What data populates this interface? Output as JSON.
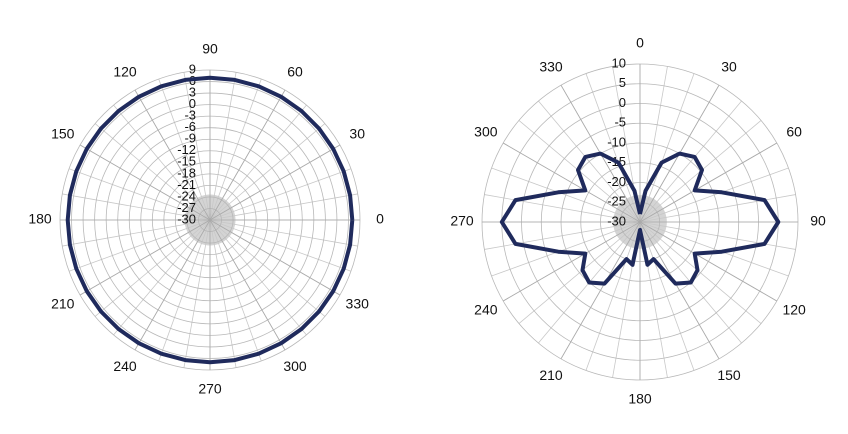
{
  "chart_data": [
    {
      "type": "polar",
      "zero": "right",
      "direction": "counterclockwise",
      "color": "#1f2a5c",
      "rlim": [
        -30,
        9
      ],
      "rticks": [
        9,
        6,
        3,
        0,
        -3,
        -6,
        -9,
        -12,
        -15,
        -18,
        -21,
        -24,
        -27,
        -30
      ],
      "thetaticks": [
        0,
        30,
        60,
        90,
        120,
        150,
        180,
        210,
        240,
        270,
        300,
        330
      ],
      "theta": [
        0,
        10,
        20,
        30,
        40,
        50,
        60,
        70,
        80,
        90,
        100,
        110,
        120,
        130,
        140,
        150,
        160,
        170,
        180,
        190,
        200,
        210,
        220,
        230,
        240,
        250,
        260,
        270,
        280,
        290,
        300,
        310,
        320,
        330,
        340,
        350,
        360
      ],
      "r": [
        7,
        7,
        7,
        7,
        7,
        7,
        7,
        7,
        7,
        7,
        7,
        7,
        7,
        7,
        7,
        7,
        7,
        7,
        7,
        7,
        7,
        7,
        7,
        7,
        7,
        7,
        7,
        7,
        7,
        7,
        7,
        7,
        7,
        7,
        7,
        7,
        7
      ]
    },
    {
      "type": "polar",
      "zero": "top",
      "direction": "clockwise",
      "color": "#1f2a5c",
      "rlim": [
        -30,
        10
      ],
      "rticks": [
        10,
        5,
        0,
        -5,
        -10,
        -15,
        -20,
        -25,
        -30
      ],
      "thetaticks": [
        0,
        30,
        60,
        90,
        120,
        150,
        180,
        210,
        240,
        270,
        300,
        330
      ],
      "theta": [
        0,
        10,
        20,
        30,
        40,
        50,
        60,
        70,
        80,
        90,
        100,
        110,
        120,
        130,
        140,
        150,
        160,
        170,
        180,
        190,
        200,
        210,
        220,
        230,
        240,
        250,
        260,
        270,
        280,
        290,
        300,
        310,
        320,
        330,
        340,
        350,
        360
      ],
      "r": [
        -28,
        -22,
        -14,
        -10,
        -8.5,
        -9.5,
        -14,
        -8,
        2,
        5,
        2,
        -8,
        -14,
        -11,
        -10,
        -12,
        -20,
        -19,
        -28,
        -19,
        -20,
        -12,
        -10,
        -11,
        -14,
        -8,
        2,
        5,
        2,
        -8,
        -14,
        -9.5,
        -8.5,
        -10,
        -14,
        -22,
        -28
      ]
    }
  ]
}
